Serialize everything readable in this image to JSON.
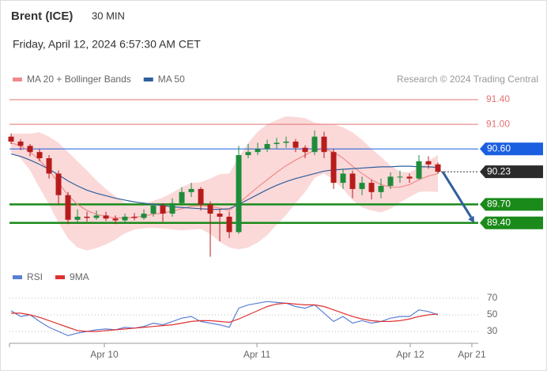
{
  "chart_data": [
    {
      "type": "candlestick",
      "title": "Brent (ICE)",
      "subtitle": "30 MIN",
      "timestamp": "Friday, April 12, 2024 6:57:30 AM CET",
      "credit": "Research © 2024 Trading Central",
      "xlim": [
        -0.17,
        49.25
      ],
      "ylim": [
        88.78,
        91.58
      ],
      "up_color": "#1e8c3a",
      "down_color": "#b71c1c",
      "open": [
        90.8,
        90.72,
        90.65,
        90.55,
        90.45,
        90.2,
        89.85,
        89.45,
        89.5,
        89.48,
        89.52,
        89.47,
        89.44,
        89.5,
        89.48,
        89.55,
        89.68,
        89.55,
        89.72,
        89.9,
        89.95,
        89.7,
        89.55,
        89.5,
        89.25,
        90.5,
        90.55,
        90.6,
        90.68,
        90.7,
        90.72,
        90.62,
        90.55,
        90.8,
        90.55,
        90.05,
        90.2,
        89.95,
        90.05,
        89.9,
        90.0,
        90.15,
        90.15,
        90.12,
        90.4,
        90.35
      ],
      "high": [
        90.85,
        90.76,
        90.68,
        90.6,
        90.5,
        90.25,
        89.9,
        89.62,
        89.58,
        89.6,
        89.58,
        89.52,
        89.55,
        89.56,
        89.62,
        89.72,
        89.72,
        89.8,
        89.98,
        90.05,
        89.98,
        89.75,
        89.62,
        89.58,
        90.65,
        90.68,
        90.7,
        90.75,
        90.78,
        90.8,
        90.76,
        90.66,
        90.9,
        90.88,
        90.6,
        90.28,
        90.25,
        90.15,
        90.1,
        90.12,
        90.22,
        90.25,
        90.2,
        90.5,
        90.48,
        90.38
      ],
      "low": [
        90.68,
        90.58,
        90.48,
        90.4,
        90.12,
        89.7,
        89.38,
        89.4,
        89.42,
        89.45,
        89.43,
        89.38,
        89.4,
        89.44,
        89.45,
        89.5,
        89.42,
        89.5,
        89.68,
        89.82,
        89.6,
        88.85,
        89.1,
        89.15,
        89.22,
        90.45,
        90.5,
        90.55,
        90.6,
        90.62,
        90.55,
        90.45,
        90.5,
        90.45,
        89.95,
        89.95,
        89.8,
        89.85,
        89.78,
        89.8,
        89.95,
        90.05,
        90.05,
        90.1,
        90.28,
        90.2
      ],
      "close": [
        90.72,
        90.65,
        90.55,
        90.45,
        90.2,
        89.85,
        89.45,
        89.5,
        89.48,
        89.52,
        89.47,
        89.44,
        89.5,
        89.48,
        89.55,
        89.68,
        89.55,
        89.72,
        89.9,
        89.95,
        89.7,
        89.55,
        89.5,
        89.25,
        90.5,
        90.55,
        90.6,
        90.68,
        90.7,
        90.72,
        90.62,
        90.55,
        90.8,
        90.55,
        90.05,
        90.2,
        89.95,
        90.05,
        89.9,
        90.0,
        90.15,
        90.15,
        90.12,
        90.4,
        90.35,
        90.23
      ],
      "series": [
        {
          "name": "MA 20 + Bollinger Bands",
          "color": "#f08a8a",
          "band_color": "#fbd9d9",
          "values": [
            90.7,
            90.65,
            90.55,
            90.42,
            90.25,
            90.05,
            89.85,
            89.7,
            89.6,
            89.54,
            89.5,
            89.48,
            89.48,
            89.49,
            89.51,
            89.54,
            89.56,
            89.59,
            89.63,
            89.67,
            89.68,
            89.67,
            89.64,
            89.6,
            89.72,
            89.85,
            89.98,
            90.1,
            90.22,
            90.33,
            90.42,
            90.5,
            90.58,
            90.6,
            90.55,
            90.45,
            90.32,
            90.2,
            90.1,
            90.02,
            89.98,
            89.98,
            90.02,
            90.1,
            90.16,
            90.2
          ],
          "upper": [
            90.85,
            90.85,
            90.85,
            90.87,
            90.8,
            90.7,
            90.55,
            90.4,
            90.25,
            90.09,
            89.95,
            89.83,
            89.73,
            89.69,
            89.71,
            89.76,
            89.81,
            89.89,
            89.98,
            90.05,
            90.06,
            90.12,
            90.19,
            90.2,
            90.47,
            90.7,
            90.88,
            91.0,
            91.07,
            91.13,
            91.12,
            91.1,
            91.03,
            91.0,
            91.0,
            90.95,
            90.87,
            90.75,
            90.6,
            90.47,
            90.33,
            90.23,
            90.22,
            90.3,
            90.41,
            90.5
          ],
          "lower": [
            90.55,
            90.45,
            90.25,
            89.97,
            89.7,
            89.4,
            89.15,
            89.0,
            88.95,
            88.99,
            89.05,
            89.13,
            89.23,
            89.29,
            89.31,
            89.32,
            89.31,
            89.29,
            89.28,
            89.29,
            89.3,
            89.22,
            89.09,
            89.0,
            88.97,
            89.0,
            89.08,
            89.2,
            89.37,
            89.53,
            89.72,
            89.9,
            90.13,
            90.2,
            90.1,
            89.95,
            89.77,
            89.65,
            89.6,
            89.57,
            89.63,
            89.73,
            89.82,
            89.9,
            89.91,
            89.9
          ]
        },
        {
          "name": "MA 50",
          "color": "#2f5f9e",
          "values": [
            90.52,
            90.48,
            90.42,
            90.35,
            90.27,
            90.18,
            90.08,
            90.0,
            89.93,
            89.88,
            89.84,
            89.8,
            89.77,
            89.74,
            89.72,
            89.7,
            89.68,
            89.66,
            89.65,
            89.64,
            89.63,
            89.62,
            89.62,
            89.63,
            89.7,
            89.78,
            89.86,
            89.94,
            90.01,
            90.07,
            90.12,
            90.16,
            90.2,
            90.24,
            90.26,
            90.27,
            90.28,
            90.29,
            90.3,
            90.31,
            90.31,
            90.32,
            90.32,
            90.31,
            90.31,
            90.3
          ]
        }
      ],
      "levels": [
        {
          "value": 91.4,
          "label": "91.40",
          "color": "#e57373",
          "style": "thin"
        },
        {
          "value": 91.0,
          "label": "91.00",
          "color": "#e57373",
          "style": "thin"
        },
        {
          "value": 90.6,
          "label": "90.60",
          "color": "#1a5fe0",
          "style": "tag"
        },
        {
          "value": 90.23,
          "label": "90.23",
          "color": "#2b2b2b",
          "style": "dotted"
        },
        {
          "value": 89.7,
          "label": "89.70",
          "color": "#1a8a1a",
          "style": "thick"
        },
        {
          "value": 89.4,
          "label": "89.40",
          "color": "#1a8a1a",
          "style": "thick"
        }
      ],
      "arrow_color": "#2f5f9e"
    },
    {
      "type": "line",
      "xlim": [
        -0.17,
        49.25
      ],
      "ylim": [
        20,
        76
      ],
      "yticks": [
        70,
        50,
        30
      ],
      "xticks": [
        {
          "value": 9.83,
          "label": "Apr 10"
        },
        {
          "value": 25.92,
          "label": "Apr 11"
        },
        {
          "value": 42.08,
          "label": "Apr 12"
        },
        {
          "value": 48.58,
          "label": "Apr 21"
        }
      ],
      "series": [
        {
          "name": "RSI",
          "color": "#5b7fd6",
          "values": [
            55,
            48,
            50,
            42,
            35,
            30,
            25,
            28,
            30,
            32,
            33,
            32,
            35,
            34,
            36,
            40,
            38,
            42,
            46,
            48,
            42,
            40,
            38,
            35,
            58,
            62,
            64,
            66,
            65,
            64,
            60,
            58,
            62,
            52,
            42,
            48,
            40,
            43,
            40,
            42,
            46,
            48,
            48,
            56,
            54,
            50
          ]
        },
        {
          "name": "9MA",
          "color": "#e03030",
          "values": [
            52,
            52,
            50,
            47,
            43,
            39,
            35,
            31,
            30,
            30,
            31,
            32,
            33,
            34,
            35,
            36,
            37,
            38,
            40,
            42,
            43,
            43,
            42,
            41,
            45,
            50,
            55,
            60,
            63,
            64,
            63,
            62,
            62,
            60,
            56,
            52,
            48,
            45,
            43,
            42,
            42,
            43,
            45,
            48,
            50,
            51
          ]
        }
      ]
    }
  ]
}
